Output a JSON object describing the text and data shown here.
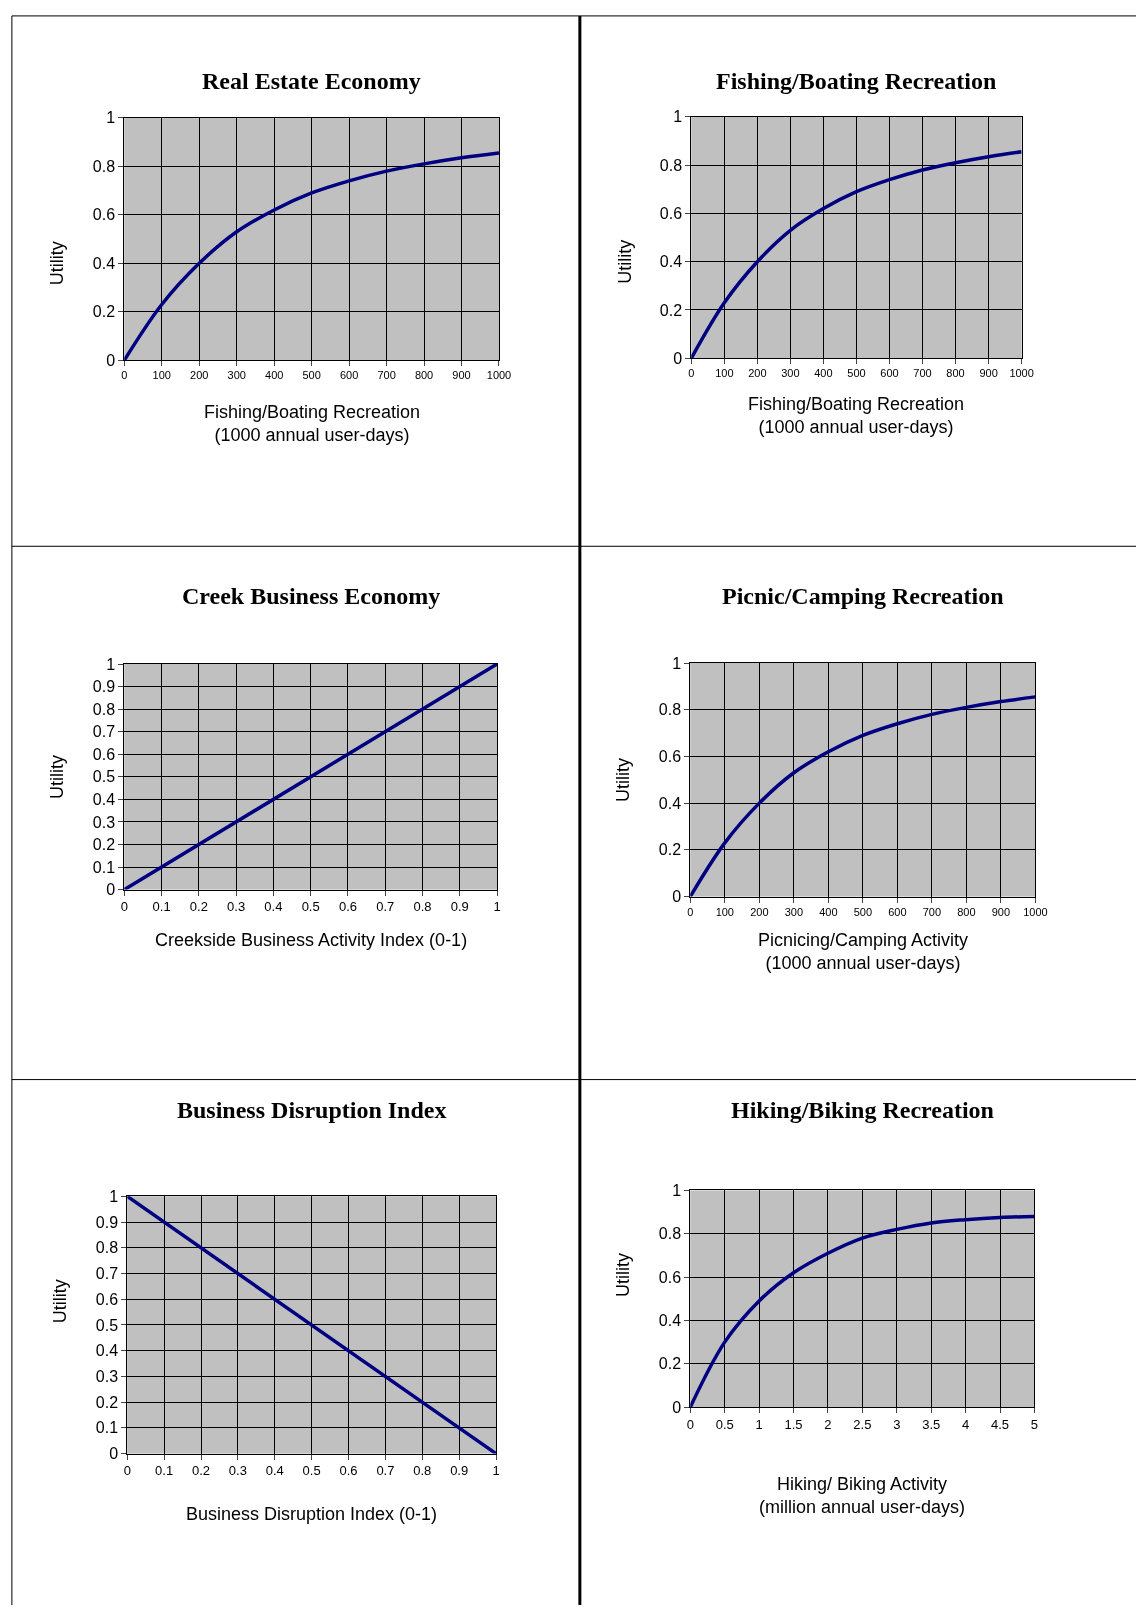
{
  "chart_data": [
    {
      "type": "line",
      "title": "Real Estate Economy",
      "xlabel": "Fishing/Boating Recreation\n(1000 annual user-days)",
      "ylabel": "Utility",
      "x": [
        0,
        100,
        200,
        300,
        400,
        500,
        600,
        700,
        800,
        900,
        1000
      ],
      "series": [
        {
          "color": "#000080",
          "values": [
            0,
            0.23,
            0.4,
            0.53,
            0.62,
            0.69,
            0.74,
            0.78,
            0.81,
            0.835,
            0.855
          ]
        }
      ],
      "xlim": [
        0,
        1000
      ],
      "ylim": [
        0,
        1
      ],
      "xticks": [
        0,
        100,
        200,
        300,
        400,
        500,
        600,
        700,
        800,
        900,
        1000
      ],
      "yticks": [
        0,
        0.2,
        0.4,
        0.6,
        0.8,
        1
      ],
      "grid": true
    },
    {
      "type": "line",
      "title": "Fishing/Boating Recreation",
      "xlabel": "Fishing/Boating Recreation\n(1000 annual user-days)",
      "ylabel": "Utility",
      "x": [
        0,
        100,
        200,
        300,
        400,
        500,
        600,
        700,
        800,
        900,
        1000
      ],
      "series": [
        {
          "color": "#000080",
          "values": [
            0,
            0.23,
            0.4,
            0.53,
            0.62,
            0.69,
            0.74,
            0.78,
            0.81,
            0.835,
            0.855
          ]
        }
      ],
      "xlim": [
        0,
        1000
      ],
      "ylim": [
        0,
        1
      ],
      "xticks": [
        0,
        100,
        200,
        300,
        400,
        500,
        600,
        700,
        800,
        900,
        1000
      ],
      "yticks": [
        0,
        0.2,
        0.4,
        0.6,
        0.8,
        1
      ],
      "grid": true
    },
    {
      "type": "line",
      "title": "Creek Business Economy",
      "xlabel": "Creekside Business Activity Index (0-1)",
      "ylabel": "Utility",
      "x": [
        0,
        1
      ],
      "series": [
        {
          "color": "#000080",
          "values": [
            0,
            1
          ]
        }
      ],
      "xlim": [
        0,
        1
      ],
      "ylim": [
        0,
        1
      ],
      "xticks": [
        0,
        0.1,
        0.2,
        0.3,
        0.4,
        0.5,
        0.6,
        0.7,
        0.8,
        0.9,
        1
      ],
      "yticks": [
        0,
        0.1,
        0.2,
        0.3,
        0.4,
        0.5,
        0.6,
        0.7,
        0.8,
        0.9,
        1
      ],
      "grid": true
    },
    {
      "type": "line",
      "title": "Picnic/Camping Recreation",
      "xlabel": "Picnicing/Camping Activity\n(1000 annual user-days)",
      "ylabel": "Utility",
      "x": [
        0,
        100,
        200,
        300,
        400,
        500,
        600,
        700,
        800,
        900,
        1000
      ],
      "series": [
        {
          "color": "#000080",
          "values": [
            0,
            0.23,
            0.4,
            0.53,
            0.62,
            0.69,
            0.74,
            0.78,
            0.81,
            0.835,
            0.855
          ]
        }
      ],
      "xlim": [
        0,
        1000
      ],
      "ylim": [
        0,
        1
      ],
      "xticks": [
        0,
        100,
        200,
        300,
        400,
        500,
        600,
        700,
        800,
        900,
        1000
      ],
      "yticks": [
        0,
        0.2,
        0.4,
        0.6,
        0.8,
        1
      ],
      "grid": true
    },
    {
      "type": "line",
      "title": "Business Disruption Index",
      "xlabel": "Business Disruption Index (0-1)",
      "ylabel": "Utility",
      "x": [
        0,
        1
      ],
      "series": [
        {
          "color": "#000080",
          "values": [
            1,
            0
          ]
        }
      ],
      "xlim": [
        0,
        1
      ],
      "ylim": [
        0,
        1
      ],
      "xticks": [
        0,
        0.1,
        0.2,
        0.3,
        0.4,
        0.5,
        0.6,
        0.7,
        0.8,
        0.9,
        1
      ],
      "yticks": [
        0,
        0.1,
        0.2,
        0.3,
        0.4,
        0.5,
        0.6,
        0.7,
        0.8,
        0.9,
        1
      ],
      "grid": true
    },
    {
      "type": "line",
      "title": "Hiking/Biking Recreation",
      "xlabel": "Hiking/ Biking Activity\n(million annual user-days)",
      "ylabel": "Utility",
      "x": [
        0,
        0.5,
        1,
        1.5,
        2,
        2.5,
        3,
        3.5,
        4,
        4.5,
        5
      ],
      "series": [
        {
          "color": "#000080",
          "values": [
            0,
            0.3,
            0.49,
            0.62,
            0.71,
            0.78,
            0.82,
            0.85,
            0.865,
            0.875,
            0.88
          ]
        }
      ],
      "xlim": [
        0,
        5
      ],
      "ylim": [
        0,
        1
      ],
      "xticks": [
        0,
        0.5,
        1,
        1.5,
        2,
        2.5,
        3,
        3.5,
        4,
        4.5,
        5
      ],
      "yticks": [
        0,
        0.2,
        0.4,
        0.6,
        0.8,
        1
      ],
      "grid": true
    }
  ]
}
